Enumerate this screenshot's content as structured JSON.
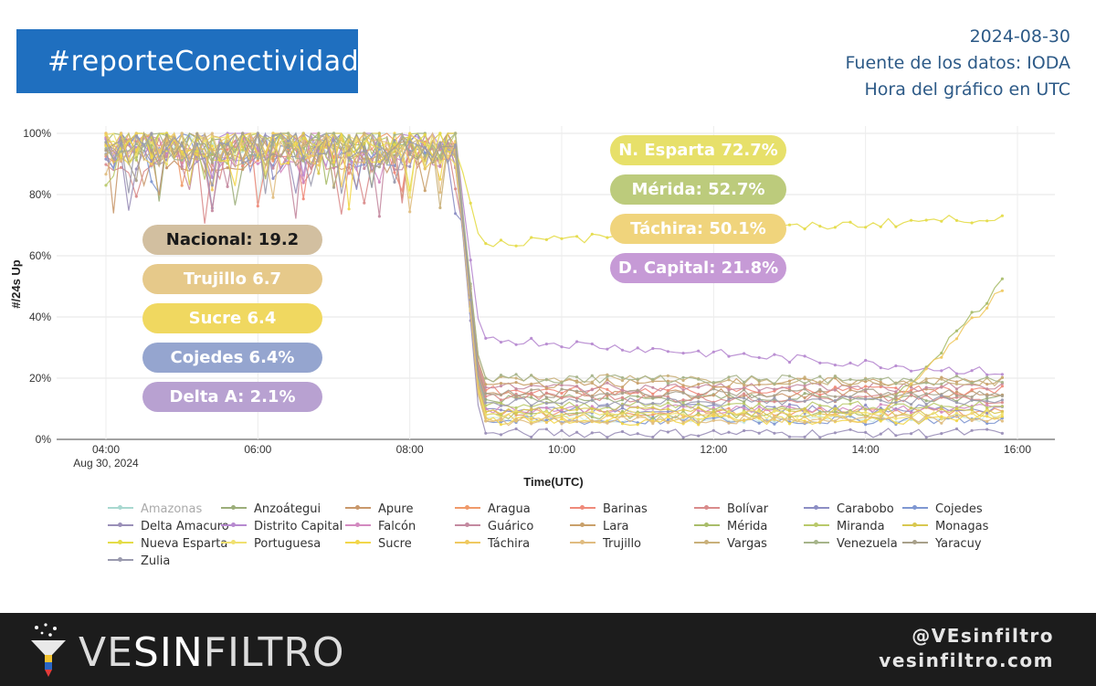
{
  "header": {
    "hashtag": "#reporteConectividad",
    "date": "2024-08-30",
    "source": "Fuente de los datos: IODA",
    "timezone": "Hora del gráfico en UTC"
  },
  "colors": {
    "banner": "#1f6fbf",
    "footer": "#1c1c1c"
  },
  "pills_left": [
    {
      "text": "Nacional: 19.2",
      "color": "#d2bfa0",
      "text_color": "#1a1a1a"
    },
    {
      "text": "Trujillo 6.7",
      "color": "#e6c98a",
      "text_color": "#ffffff"
    },
    {
      "text": "Sucre 6.4",
      "color": "#f0d860",
      "text_color": "#ffffff"
    },
    {
      "text": "Cojedes 6.4%",
      "color": "#95a5cf",
      "text_color": "#ffffff"
    },
    {
      "text": "Delta A: 2.1%",
      "color": "#b8a1d1",
      "text_color": "#ffffff"
    }
  ],
  "pills_right": [
    {
      "text": "N. Esparta 72.7%",
      "color": "#e7e06a",
      "text_color": "#ffffff"
    },
    {
      "text": "Mérida: 52.7%",
      "color": "#bccb7c",
      "text_color": "#ffffff"
    },
    {
      "text": "Táchira: 50.1%",
      "color": "#f0d47c",
      "text_color": "#ffffff"
    },
    {
      "text": "D. Capital: 21.8%",
      "color": "#c69ad6",
      "text_color": "#ffffff"
    }
  ],
  "chart_data": {
    "type": "line",
    "xlabel": "Time(UTC)",
    "ylabel": "#/24s Up",
    "x_ticks": [
      "04:00",
      "06:00",
      "08:00",
      "10:00",
      "12:00",
      "14:00",
      "16:00"
    ],
    "x_tick_sub": "Aug 30, 2024",
    "y_ticks": [
      "0%",
      "20%",
      "40%",
      "60%",
      "80%",
      "100%"
    ],
    "ylim": [
      0,
      100
    ],
    "x_range_hours": [
      4.0,
      16.0
    ],
    "grid": true,
    "legend_position": "bottom",
    "series": [
      {
        "name": "Amazonas",
        "color": "#a8d8d0",
        "dim": true,
        "before": 96,
        "after": 7,
        "end": 7
      },
      {
        "name": "Anzoátegui",
        "color": "#9cae7a",
        "before": 96,
        "after": 13,
        "end": 14
      },
      {
        "name": "Apure",
        "color": "#c9986b",
        "before": 93,
        "after": 15,
        "end": 15
      },
      {
        "name": "Aragua",
        "color": "#f09a6a",
        "before": 96,
        "after": 9,
        "end": 9
      },
      {
        "name": "Barinas",
        "color": "#ef8a7a",
        "before": 95,
        "after": 16,
        "end": 16
      },
      {
        "name": "Bolívar",
        "color": "#d98b8b",
        "before": 93,
        "after": 14,
        "end": 13
      },
      {
        "name": "Carabobo",
        "color": "#8c8ec4",
        "before": 97,
        "after": 10,
        "end": 10
      },
      {
        "name": "Cojedes",
        "color": "#7f97d2",
        "before": 94,
        "after": 6,
        "end": 6.4
      },
      {
        "name": "Delta Amacuro",
        "color": "#9a8fb8",
        "before": 94,
        "after": 2,
        "end": 2.1
      },
      {
        "name": "Distrito Capital",
        "color": "#b78ad0",
        "before": 97,
        "after": 33,
        "end": 21.8
      },
      {
        "name": "Falcón",
        "color": "#d38ac0",
        "before": 95,
        "after": 10,
        "end": 10
      },
      {
        "name": "Guárico",
        "color": "#c48aa0",
        "before": 94,
        "after": 17,
        "end": 17
      },
      {
        "name": "Lara",
        "color": "#c9a06a",
        "before": 96,
        "after": 18,
        "end": 19
      },
      {
        "name": "Mérida",
        "color": "#a9bd6a",
        "before": 96,
        "after": 8,
        "end": 52.7
      },
      {
        "name": "Miranda",
        "color": "#b9c96a",
        "before": 97,
        "after": 11,
        "end": 11
      },
      {
        "name": "Monagas",
        "color": "#d8c850",
        "before": 96,
        "after": 9,
        "end": 9
      },
      {
        "name": "Nueva Esparta",
        "color": "#e4dc48",
        "before": 97,
        "after": 64,
        "end": 72.7
      },
      {
        "name": "Portuguesa",
        "color": "#f0e070",
        "before": 95,
        "after": 8,
        "end": 8
      },
      {
        "name": "Sucre",
        "color": "#f2d64a",
        "before": 96,
        "after": 6,
        "end": 6.4
      },
      {
        "name": "Táchira",
        "color": "#efc960",
        "before": 95,
        "after": 7,
        "end": 50.1
      },
      {
        "name": "Trujillo",
        "color": "#e0bc80",
        "before": 96,
        "after": 6,
        "end": 6.7
      },
      {
        "name": "Vargas",
        "color": "#c9b07a",
        "before": 95,
        "after": 20,
        "end": 19
      },
      {
        "name": "Venezuela",
        "color": "#a6b48a",
        "before": 97,
        "after": 20,
        "end": 19.2
      },
      {
        "name": "Yaracuy",
        "color": "#a8a08a",
        "before": 95,
        "after": 15,
        "end": 15
      },
      {
        "name": "Zulia",
        "color": "#9a9aae",
        "before": 96,
        "after": 12,
        "end": 13
      }
    ]
  },
  "footer": {
    "brand_part1": "VE",
    "brand_part2": "SIN",
    "brand_part3": "FILTRO",
    "twitter": "@VEsinfiltro",
    "website": "vesinfiltro.com"
  }
}
